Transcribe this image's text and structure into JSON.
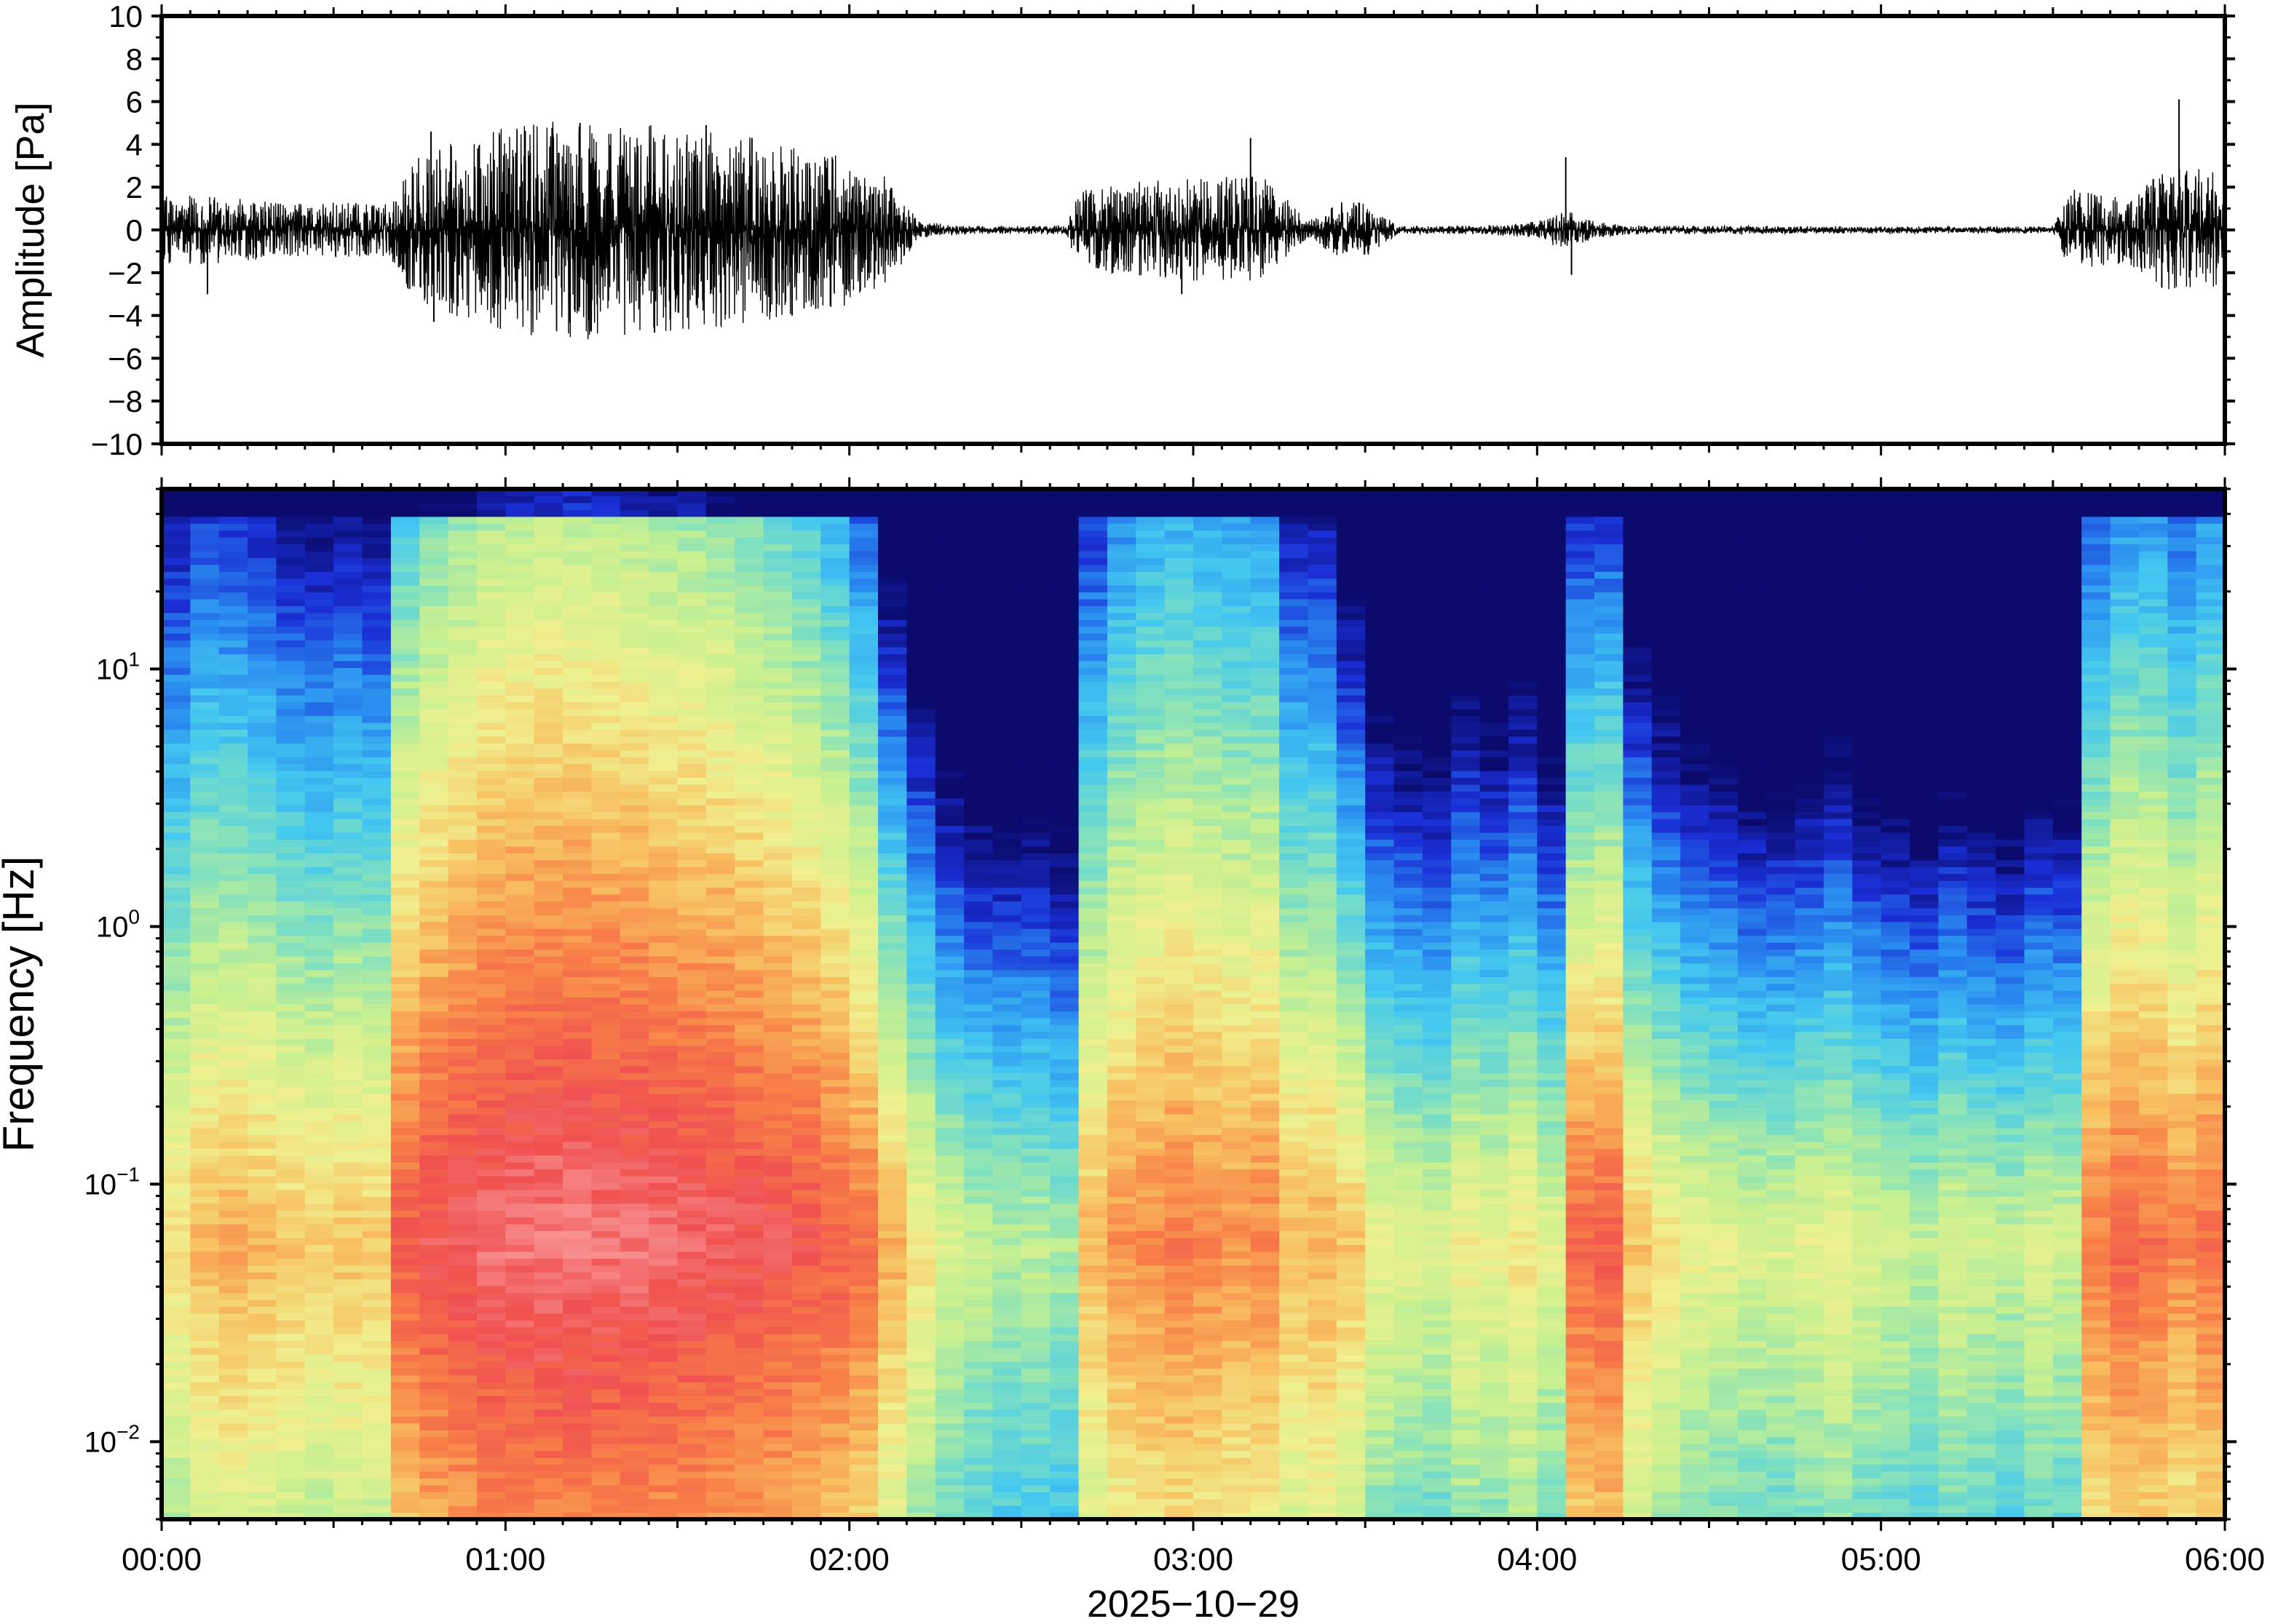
{
  "chart_data": [
    {
      "type": "line",
      "panel": "waveform",
      "ylabel": "Amplitude [Pa]",
      "ylim": [
        -10,
        10
      ],
      "y_ticks": [
        -10,
        -8,
        -6,
        -4,
        -2,
        0,
        2,
        4,
        6,
        8,
        10
      ],
      "y_tick_labels": [
        "−10",
        "−8",
        "−6",
        "−4",
        "−2",
        "0",
        "2",
        "4",
        "6",
        "8",
        "10"
      ],
      "x_range_minutes": [
        0,
        360
      ],
      "envelope": {
        "x_minutes": [
          0,
          10,
          20,
          30,
          40,
          42,
          45,
          50,
          60,
          70,
          80,
          90,
          100,
          110,
          120,
          128,
          132,
          140,
          150,
          158,
          160,
          170,
          180,
          190,
          193,
          200,
          205,
          210,
          216,
          220,
          230,
          240,
          245,
          250,
          255,
          260,
          270,
          280,
          300,
          320,
          330,
          333,
          340,
          345,
          350,
          355,
          360
        ],
        "amp_pa": [
          1.0,
          1.0,
          0.8,
          0.8,
          0.8,
          1.6,
          2.2,
          2.5,
          3.0,
          3.2,
          3.2,
          3.0,
          2.8,
          2.5,
          2.2,
          1.4,
          0.25,
          0.12,
          0.12,
          0.15,
          1.2,
          1.4,
          1.5,
          1.6,
          1.5,
          0.25,
          0.8,
          0.8,
          0.12,
          0.12,
          0.12,
          0.25,
          0.6,
          0.25,
          0.15,
          0.12,
          0.12,
          0.12,
          0.1,
          0.1,
          0.1,
          1.2,
          1.0,
          1.2,
          1.8,
          1.8,
          1.6
        ]
      },
      "spikes": [
        {
          "t": 8,
          "a": -3.0
        },
        {
          "t": 47,
          "a": 4.6
        },
        {
          "t": 47.5,
          "a": -4.3
        },
        {
          "t": 73,
          "a": 5.0
        },
        {
          "t": 86,
          "a": -4.8
        },
        {
          "t": 95,
          "a": 4.9
        },
        {
          "t": 110,
          "a": -4.0
        },
        {
          "t": 190,
          "a": 4.3
        },
        {
          "t": 178,
          "a": -3.0
        },
        {
          "t": 245,
          "a": 3.4
        },
        {
          "t": 246,
          "a": -2.1
        },
        {
          "t": 352,
          "a": 6.1
        },
        {
          "t": 349,
          "a": -2.7
        },
        {
          "t": 103,
          "a": 4.3
        },
        {
          "t": 58,
          "a": -4.1
        }
      ]
    },
    {
      "type": "heatmap",
      "panel": "spectrogram",
      "ylabel": "Frequency [Hz]",
      "y_scale": "log",
      "ylim_hz": [
        0.005,
        50
      ],
      "y_ticks": [
        0.01,
        0.1,
        1,
        10
      ],
      "y_tick_labels": [
        {
          "base": "10",
          "exp": "−2"
        },
        {
          "base": "10",
          "exp": "−1"
        },
        {
          "base": "10",
          "exp": "0"
        },
        {
          "base": "10",
          "exp": "1"
        }
      ],
      "xlabel": "2025−10−29",
      "x_ticks": [
        "00:00",
        "01:00",
        "02:00",
        "03:00",
        "04:00",
        "05:00",
        "06:00"
      ],
      "x_range_minutes": [
        0,
        360
      ],
      "colormap": [
        "#0b0b6e",
        "#1a2fd6",
        "#2a8df0",
        "#44c8f0",
        "#7fe0c0",
        "#c8f090",
        "#f0f090",
        "#f8c060",
        "#f88048",
        "#f05050",
        "#f89090"
      ],
      "columns_level_lf": [
        0.66,
        0.72,
        0.74,
        0.72,
        0.7,
        0.68,
        0.7,
        0.69,
        0.88,
        0.92,
        0.94,
        0.96,
        0.97,
        0.98,
        0.98,
        0.97,
        0.97,
        0.96,
        0.95,
        0.94,
        0.93,
        0.92,
        0.9,
        0.88,
        0.84,
        0.74,
        0.64,
        0.56,
        0.52,
        0.5,
        0.5,
        0.48,
        0.72,
        0.78,
        0.8,
        0.82,
        0.8,
        0.78,
        0.8,
        0.72,
        0.74,
        0.7,
        0.6,
        0.58,
        0.56,
        0.62,
        0.6,
        0.64,
        0.58,
        0.86,
        0.88,
        0.7,
        0.64,
        0.6,
        0.58,
        0.56,
        0.56,
        0.58,
        0.6,
        0.56,
        0.54,
        0.52,
        0.56,
        0.54,
        0.52,
        0.56,
        0.54,
        0.82,
        0.86,
        0.84,
        0.8,
        0.84
      ],
      "columns_hf_drop": [
        0.55,
        0.55,
        0.58,
        0.58,
        0.6,
        0.6,
        0.6,
        0.6,
        0.5,
        0.48,
        0.46,
        0.44,
        0.44,
        0.44,
        0.44,
        0.44,
        0.45,
        0.46,
        0.46,
        0.46,
        0.48,
        0.5,
        0.52,
        0.56,
        0.62,
        0.74,
        0.8,
        0.82,
        0.84,
        0.82,
        0.82,
        0.84,
        0.56,
        0.52,
        0.5,
        0.5,
        0.5,
        0.5,
        0.52,
        0.6,
        0.62,
        0.72,
        0.78,
        0.8,
        0.8,
        0.76,
        0.8,
        0.78,
        0.82,
        0.7,
        0.7,
        0.8,
        0.82,
        0.84,
        0.84,
        0.86,
        0.86,
        0.86,
        0.84,
        0.86,
        0.88,
        0.88,
        0.86,
        0.88,
        0.88,
        0.86,
        0.86,
        0.62,
        0.58,
        0.56,
        0.58,
        0.56
      ]
    }
  ]
}
